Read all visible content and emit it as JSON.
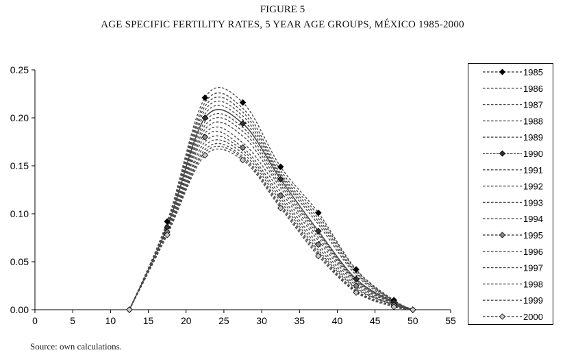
{
  "figure": {
    "number": "FIGURE 5",
    "title": "AGE SPECIFIC FERTILITY RATES, 5 YEAR AGE GROUPS, MÉXICO 1985-2000",
    "source": "Source: own calculations."
  },
  "chart_data": {
    "type": "line",
    "title": "AGE SPECIFIC FERTILITY RATES, 5 YEAR AGE GROUPS, MÉXICO 1985-2000",
    "xlabel": "",
    "ylabel": "",
    "xlim": [
      0,
      55
    ],
    "ylim": [
      0,
      0.25
    ],
    "x_ticks": [
      0,
      5,
      10,
      15,
      20,
      25,
      30,
      35,
      40,
      45,
      50,
      55
    ],
    "x_tick_labels": [
      "0",
      "5",
      "10",
      "15",
      "20",
      "25",
      "30",
      "35",
      "40",
      "45",
      "50",
      "55"
    ],
    "y_ticks": [
      0,
      0.05,
      0.1,
      0.15,
      0.2,
      0.25
    ],
    "y_tick_labels": [
      "0.00",
      "0.05",
      "0.10",
      "0.15",
      "0.20",
      "0.25"
    ],
    "grid": false,
    "legend_position": "right",
    "x": [
      12.5,
      17.5,
      22.5,
      27.5,
      32.5,
      37.5,
      42.5,
      47.5,
      50
    ],
    "series": [
      {
        "name": "1985",
        "marker": "black-diamond",
        "values": [
          0,
          0.092,
          0.221,
          0.216,
          0.149,
          0.101,
          0.042,
          0.01,
          0
        ]
      },
      {
        "name": "1986",
        "marker": "none",
        "values": [
          0,
          0.09,
          0.216,
          0.21,
          0.145,
          0.098,
          0.041,
          0.009,
          0
        ]
      },
      {
        "name": "1987",
        "marker": "none",
        "values": [
          0,
          0.089,
          0.212,
          0.206,
          0.142,
          0.095,
          0.039,
          0.009,
          0
        ]
      },
      {
        "name": "1988",
        "marker": "none",
        "values": [
          0,
          0.088,
          0.208,
          0.202,
          0.14,
          0.092,
          0.038,
          0.009,
          0
        ]
      },
      {
        "name": "1989",
        "marker": "none",
        "values": [
          0,
          0.087,
          0.204,
          0.198,
          0.138,
          0.089,
          0.036,
          0.008,
          0
        ]
      },
      {
        "name": "1990",
        "marker": "dark-diamond",
        "values": [
          0,
          0.086,
          0.2,
          0.194,
          0.136,
          0.082,
          0.032,
          0.008,
          0
        ]
      },
      {
        "name": "1991",
        "marker": "none",
        "values": [
          0,
          0.085,
          0.196,
          0.19,
          0.133,
          0.08,
          0.031,
          0.007,
          0
        ]
      },
      {
        "name": "1992",
        "marker": "none",
        "values": [
          0,
          0.084,
          0.192,
          0.186,
          0.13,
          0.078,
          0.03,
          0.007,
          0
        ]
      },
      {
        "name": "1993",
        "marker": "none",
        "values": [
          0,
          0.083,
          0.188,
          0.181,
          0.127,
          0.075,
          0.029,
          0.006,
          0
        ]
      },
      {
        "name": "1994",
        "marker": "none",
        "values": [
          0,
          0.082,
          0.184,
          0.174,
          0.123,
          0.072,
          0.027,
          0.006,
          0
        ]
      },
      {
        "name": "1995",
        "marker": "gray-diamond",
        "values": [
          0,
          0.081,
          0.18,
          0.169,
          0.119,
          0.068,
          0.025,
          0.005,
          0
        ]
      },
      {
        "name": "1996",
        "marker": "none",
        "values": [
          0,
          0.08,
          0.175,
          0.166,
          0.116,
          0.065,
          0.023,
          0.005,
          0
        ]
      },
      {
        "name": "1997",
        "marker": "none",
        "values": [
          0,
          0.08,
          0.171,
          0.163,
          0.113,
          0.062,
          0.022,
          0.005,
          0
        ]
      },
      {
        "name": "1998",
        "marker": "none",
        "values": [
          0,
          0.079,
          0.167,
          0.16,
          0.11,
          0.06,
          0.02,
          0.004,
          0
        ]
      },
      {
        "name": "1999",
        "marker": "none",
        "values": [
          0,
          0.079,
          0.164,
          0.158,
          0.108,
          0.058,
          0.019,
          0.004,
          0
        ]
      },
      {
        "name": "2000",
        "marker": "light-diamond",
        "values": [
          0,
          0.078,
          0.161,
          0.156,
          0.106,
          0.056,
          0.018,
          0.003,
          0
        ]
      }
    ],
    "colors": {
      "line": "#4a4a4a",
      "axis": "#000000",
      "marker_1985": "#000000",
      "marker_1990": "#333333",
      "marker_1995": "#888888",
      "marker_2000": "#c8c8c8"
    }
  }
}
